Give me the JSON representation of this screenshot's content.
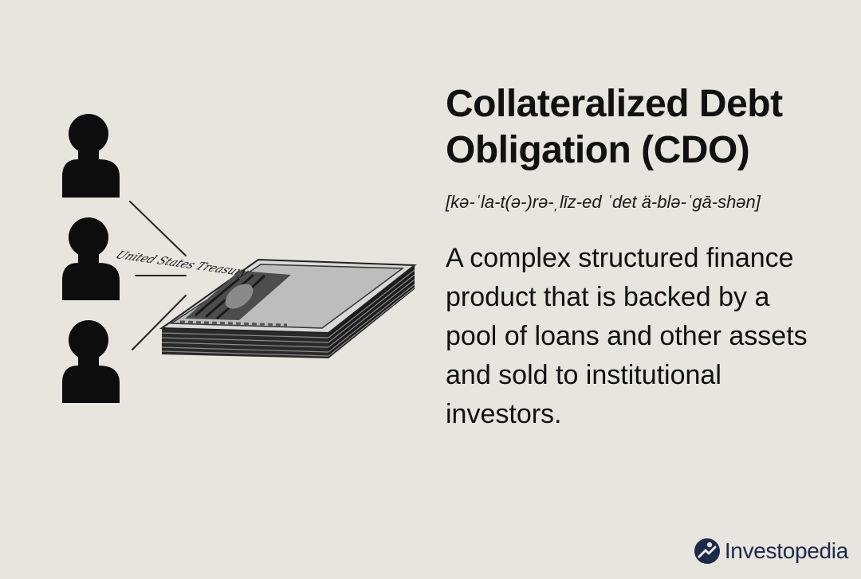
{
  "title": "Collateralized Debt Obligation (CDO)",
  "pronunciation": "[kə-ˈla-t(ə-)rə-ˌlīz-ed ˈdet ä-blə-ˈgā-shən]",
  "definition": "A complex structured finance product that is backed by a pool of loans and other assets and sold to institutional investors.",
  "brand": {
    "name": "Investopedia",
    "logo_icon": "investopedia-logo-icon"
  },
  "illustration": {
    "investor_icon": "person-silhouette-icon",
    "investor_count": 3,
    "asset_icon": "stack-of-bills-icon",
    "bill_text": "United States Treasury"
  }
}
